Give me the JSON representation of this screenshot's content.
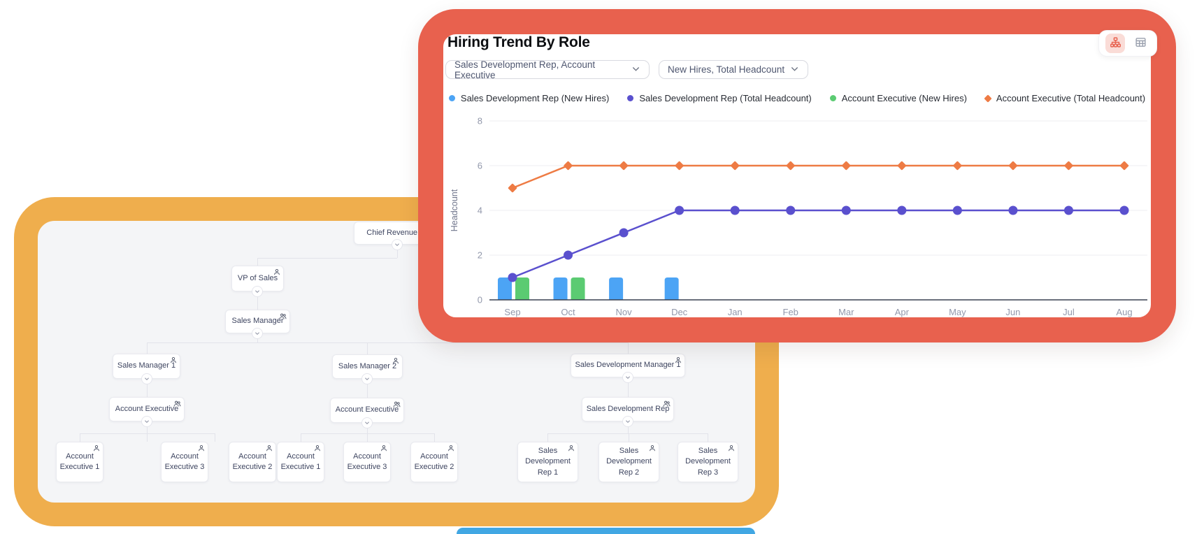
{
  "chart_card": {
    "title": "Hiring Trend By Role",
    "border_color": "#E8614E",
    "filters": [
      {
        "value": "Sales Development Rep, Account Executive"
      },
      {
        "value": "New Hires, Total Headcount"
      }
    ],
    "view_toggle": {
      "active": "org-chart-view",
      "active_bg": "#FADCD7",
      "options": [
        "org-chart-view",
        "table-view"
      ]
    }
  },
  "chart_data": {
    "type": "combo",
    "title": "Hiring Trend By Role",
    "xlabel": "",
    "ylabel": "Headcount",
    "ylim": [
      0,
      8
    ],
    "yticks": [
      0,
      2,
      4,
      6,
      8
    ],
    "grid": true,
    "legend_position": "top",
    "categories": [
      "Sep",
      "Oct",
      "Nov",
      "Dec",
      "Jan",
      "Feb",
      "Mar",
      "Apr",
      "May",
      "Jun",
      "Jul",
      "Aug"
    ],
    "series": [
      {
        "name": "Sales Development Rep (New Hires)",
        "type": "bar",
        "bar_slot": 0,
        "marker": "circle",
        "color": "#4CA4F5",
        "values": [
          1,
          1,
          1,
          1,
          0,
          0,
          0,
          0,
          0,
          0,
          0,
          0
        ]
      },
      {
        "name": "Sales Development Rep (Total Headcount)",
        "type": "line",
        "marker": "circle",
        "color": "#5A50CE",
        "values": [
          1,
          2,
          3,
          4,
          4,
          4,
          4,
          4,
          4,
          4,
          4,
          4
        ]
      },
      {
        "name": "Account Executive (New Hires)",
        "type": "bar",
        "bar_slot": 1,
        "marker": "circle",
        "color": "#5BCB72",
        "values": [
          1,
          1,
          0,
          0,
          0,
          0,
          0,
          0,
          0,
          0,
          0,
          0
        ]
      },
      {
        "name": "Account Executive (Total Headcount)",
        "type": "line",
        "marker": "diamond",
        "color": "#EE7B44",
        "values": [
          5,
          6,
          6,
          6,
          6,
          6,
          6,
          6,
          6,
          6,
          6,
          6
        ]
      }
    ]
  },
  "org_card": {
    "border_color": "#EFAE4D",
    "background": "#F4F5F7",
    "nodes": [
      {
        "label": "Chief Revenue Of",
        "icon": "person"
      },
      {
        "label": "VP of Sales",
        "icon": "person"
      },
      {
        "label": "Sales Manager",
        "icon": "group"
      },
      {
        "label": "Sales Manager 1",
        "icon": "person"
      },
      {
        "label": "Sales Manager 2",
        "icon": "person"
      },
      {
        "label": "Sales Development Manager 1",
        "icon": "person"
      },
      {
        "label": "Account Executive",
        "icon": "group"
      },
      {
        "label": "Account Executive",
        "icon": "group"
      },
      {
        "label": "Sales Development Rep",
        "icon": "group"
      },
      {
        "label": "Account Executive 1",
        "icon": "person"
      },
      {
        "label": "Account Executive 3",
        "icon": "person"
      },
      {
        "label": "Account Executive 2",
        "icon": "person"
      },
      {
        "label": "Account Executive 1",
        "icon": "person"
      },
      {
        "label": "Account Executive 3",
        "icon": "person"
      },
      {
        "label": "Account Executive 2",
        "icon": "person"
      },
      {
        "label": "Sales Development Rep 1",
        "icon": "person"
      },
      {
        "label": "Sales Development Rep 2",
        "icon": "person"
      },
      {
        "label": "Sales Development Rep 3",
        "icon": "person"
      }
    ]
  },
  "peek_card": {
    "color": "#41A7E3"
  }
}
